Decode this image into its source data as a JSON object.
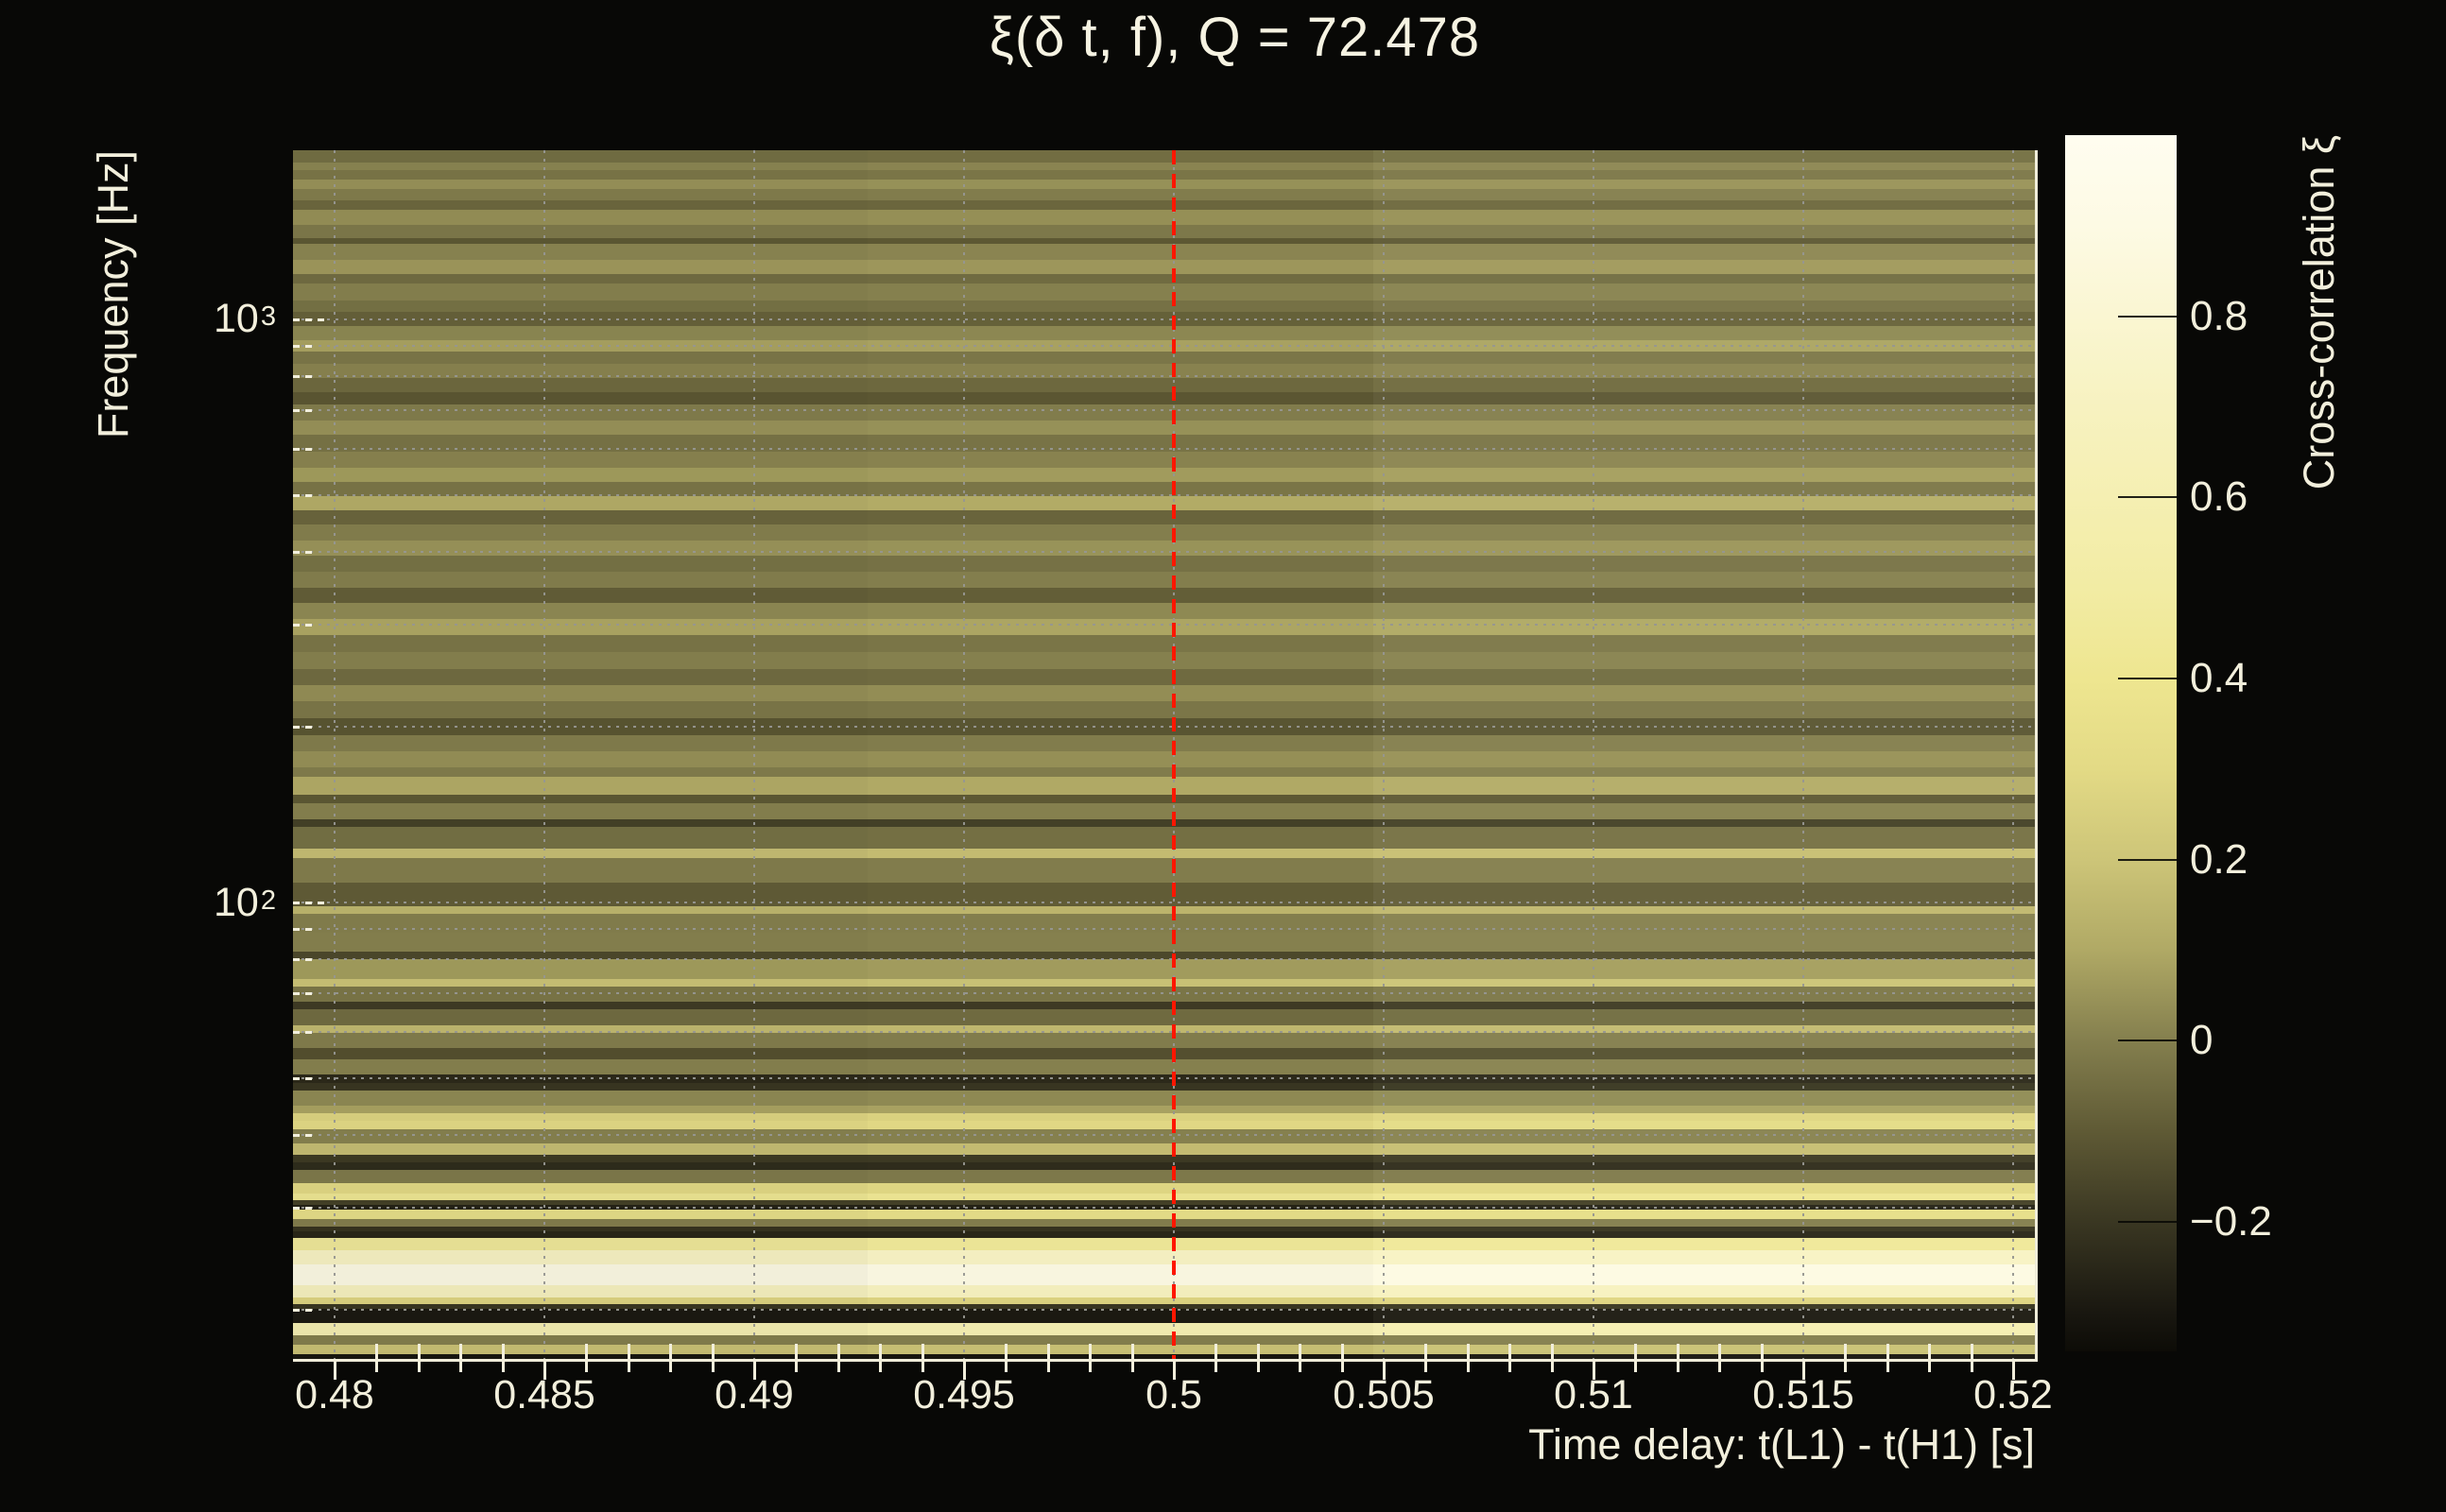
{
  "figure": {
    "background": "#080806",
    "text_color": "#f2efdc",
    "accent_red": "#ff1600"
  },
  "chart_data": {
    "type": "heatmap",
    "title": "ξ(δ t, f), Q = 72.478",
    "xlabel": "Time delay: t(L1) - t(H1) [s]",
    "ylabel": "Frequency [Hz]",
    "colorbar_label": "Cross-correlation ξ",
    "x_range": [
      0.479009,
      0.520518
    ],
    "x_major_ticks": [
      0.48,
      0.485,
      0.49,
      0.495,
      0.5,
      0.505,
      0.51,
      0.515,
      0.52
    ],
    "x_tick_labels": [
      "0.48",
      "0.485",
      "0.49",
      "0.495",
      "0.5",
      "0.505",
      "0.51",
      "0.515",
      "0.52"
    ],
    "x_minor_step": 0.001,
    "y_scale": "log",
    "y_range_hz": [
      16.5,
      1950
    ],
    "y_major_ticks": [
      {
        "f": 1000,
        "base": "10",
        "exp": "3"
      },
      {
        "f": 100,
        "base": "10",
        "exp": "2"
      }
    ],
    "y_grid_freqs": [
      1000,
      900,
      800,
      700,
      600,
      500,
      400,
      300,
      200,
      100,
      90,
      80,
      70,
      60,
      50,
      40,
      30,
      20
    ],
    "reference_line": {
      "x": 0.5,
      "color": "#ff1600",
      "style": "dashed"
    },
    "grid": {
      "style": "dotted",
      "color": "rgba(150,150,145,0.95)"
    },
    "colorbar": {
      "vmin": -0.343,
      "vmax": 1.0,
      "ticks": [
        0.8,
        0.6,
        0.4,
        0.2,
        0,
        -0.2
      ],
      "tick_labels": [
        "0.8",
        "0.6",
        "0.4",
        "0.2",
        "0",
        "−0.2"
      ]
    },
    "colormap": [
      {
        "v": 1.0,
        "c": "#fffdf0"
      },
      {
        "v": 0.9,
        "c": "#fdfae4"
      },
      {
        "v": 0.8,
        "c": "#faf6d2"
      },
      {
        "v": 0.7,
        "c": "#f7f2c0"
      },
      {
        "v": 0.6,
        "c": "#f5efb2"
      },
      {
        "v": 0.5,
        "c": "#f2eca4"
      },
      {
        "v": 0.4,
        "c": "#eee690"
      },
      {
        "v": 0.3,
        "c": "#e3da85"
      },
      {
        "v": 0.2,
        "c": "#cdc578"
      },
      {
        "v": 0.1,
        "c": "#b0a965"
      },
      {
        "v": 0.0,
        "c": "#847f4e"
      },
      {
        "v": -0.1,
        "c": "#5f5a35"
      },
      {
        "v": -0.2,
        "c": "#3a3722"
      },
      {
        "v": -0.3,
        "c": "#191710"
      },
      {
        "v": -0.343,
        "c": "#0d0c07"
      }
    ],
    "xi_profile_bands": [
      [
        0.0102,
        -0.04
      ],
      [
        0.0164,
        0.02
      ],
      [
        0.0242,
        -0.02
      ],
      [
        0.0321,
        0.05
      ],
      [
        0.0414,
        0.0
      ],
      [
        0.0493,
        -0.06
      ],
      [
        0.0618,
        0.045
      ],
      [
        0.0727,
        -0.01
      ],
      [
        0.0774,
        -0.1
      ],
      [
        0.0907,
        0.02
      ],
      [
        0.1024,
        0.065
      ],
      [
        0.1102,
        -0.045
      ],
      [
        0.1243,
        0.01
      ],
      [
        0.1337,
        -0.03
      ],
      [
        0.1454,
        -0.075
      ],
      [
        0.1572,
        0.025
      ],
      [
        0.1665,
        0.09
      ],
      [
        0.1767,
        -0.015
      ],
      [
        0.1884,
        0.015
      ],
      [
        0.2002,
        -0.055
      ],
      [
        0.2103,
        -0.105
      ],
      [
        0.2236,
        0.0
      ],
      [
        0.2353,
        0.05
      ],
      [
        0.2494,
        -0.025
      ],
      [
        0.2627,
        0.015
      ],
      [
        0.2744,
        0.075
      ],
      [
        0.2862,
        -0.02
      ],
      [
        0.2979,
        0.12
      ],
      [
        0.3096,
        -0.065
      ],
      [
        0.3229,
        0.005
      ],
      [
        0.3354,
        0.055
      ],
      [
        0.3487,
        -0.03
      ],
      [
        0.362,
        0.005
      ],
      [
        0.3745,
        -0.085
      ],
      [
        0.3878,
        0.03
      ],
      [
        0.4011,
        0.1
      ],
      [
        0.4152,
        -0.02
      ],
      [
        0.4293,
        0.01
      ],
      [
        0.4426,
        -0.05
      ],
      [
        0.4559,
        0.04
      ],
      [
        0.4699,
        -0.015
      ],
      [
        0.484,
        -0.11
      ],
      [
        0.4973,
        0.0
      ],
      [
        0.5106,
        0.045
      ],
      [
        0.5184,
        0.0
      ],
      [
        0.5333,
        0.115
      ],
      [
        0.5403,
        -0.1
      ],
      [
        0.5536,
        0.01
      ],
      [
        0.5598,
        -0.17
      ],
      [
        0.5778,
        -0.035
      ],
      [
        0.5856,
        0.18
      ],
      [
        0.6059,
        0.0
      ],
      [
        0.6255,
        -0.09
      ],
      [
        0.6317,
        0.155
      ],
      [
        0.6474,
        0.005
      ],
      [
        0.663,
        0.01
      ],
      [
        0.6693,
        -0.145
      ],
      [
        0.6857,
        0.075
      ],
      [
        0.692,
        0.2
      ],
      [
        0.7045,
        -0.02
      ],
      [
        0.7107,
        -0.185
      ],
      [
        0.724,
        -0.05
      ],
      [
        0.7303,
        0.165
      ],
      [
        0.7428,
        0.0
      ],
      [
        0.7522,
        -0.125
      ],
      [
        0.7647,
        0.01
      ],
      [
        0.7717,
        -0.24
      ],
      [
        0.778,
        -0.2
      ],
      [
        0.7905,
        0.03
      ],
      [
        0.7967,
        0.09
      ],
      [
        0.803,
        0.28
      ],
      [
        0.81,
        0.32
      ],
      [
        0.8217,
        0.01
      ],
      [
        0.8311,
        0.18
      ],
      [
        0.8374,
        -0.19
      ],
      [
        0.8436,
        -0.23
      ],
      [
        0.8546,
        -0.01
      ],
      [
        0.8632,
        0.3
      ],
      [
        0.8687,
        0.42
      ],
      [
        0.8726,
        -0.17
      ],
      [
        0.8765,
        -0.26
      ],
      [
        0.8843,
        0.34
      ],
      [
        0.8906,
        0.0
      ],
      [
        0.8945,
        -0.21
      ],
      [
        0.9,
        -0.25
      ],
      [
        0.9101,
        0.45
      ],
      [
        0.9218,
        0.72
      ],
      [
        0.939,
        0.9
      ],
      [
        0.9492,
        0.7
      ],
      [
        0.9547,
        0.28
      ],
      [
        0.9586,
        -0.2
      ],
      [
        0.9703,
        -0.29
      ],
      [
        0.9805,
        0.6
      ],
      [
        0.9883,
        0.0
      ],
      [
        0.9961,
        0.19
      ],
      [
        1.0,
        -0.3
      ]
    ],
    "x_overlays": [
      {
        "x0": 0.0,
        "x1": 0.33,
        "c": "rgba(0,0,0,0.045)"
      },
      {
        "x0": 0.33,
        "x1": 0.62,
        "c": "rgba(0,0,0,0.02)"
      },
      {
        "x0": 0.62,
        "x1": 1.0,
        "c": "rgba(255,255,215,0.035)"
      }
    ]
  }
}
